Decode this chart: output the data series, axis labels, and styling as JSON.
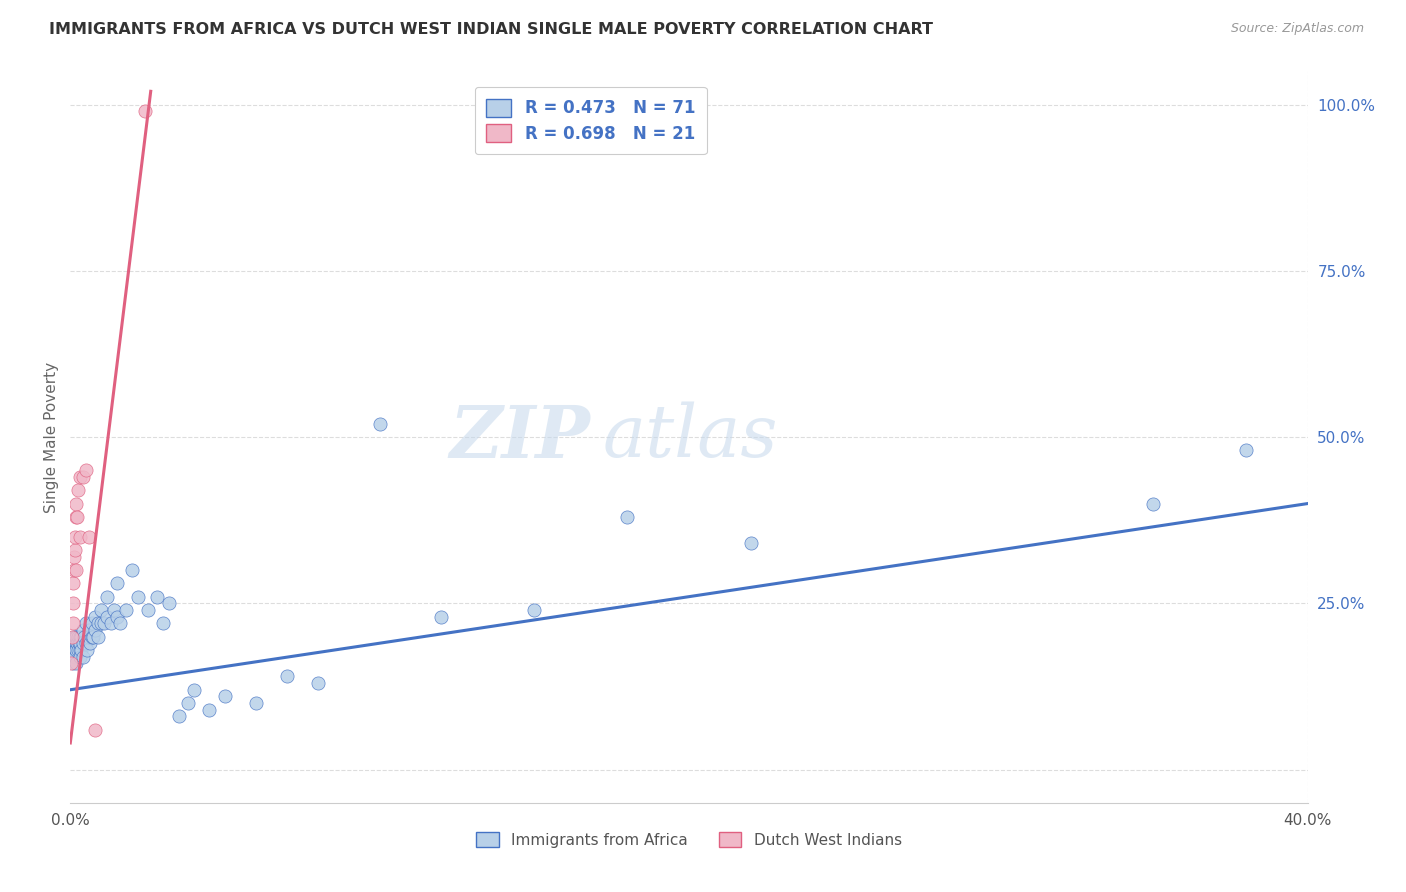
{
  "title": "IMMIGRANTS FROM AFRICA VS DUTCH WEST INDIAN SINGLE MALE POVERTY CORRELATION CHART",
  "source": "Source: ZipAtlas.com",
  "ylabel": "Single Male Poverty",
  "legend_label1": "Immigrants from Africa",
  "legend_label2": "Dutch West Indians",
  "r1": 0.473,
  "n1": 71,
  "r2": 0.698,
  "n2": 21,
  "color_africa": "#b8d0e8",
  "color_dwi": "#f0b8c8",
  "color_africa_line": "#4472c4",
  "color_dwi_line": "#e06080",
  "color_text_blue": "#4472c4",
  "watermark_zip": "ZIP",
  "watermark_atlas": "atlas",
  "xlim": [
    0.0,
    0.4
  ],
  "ylim": [
    -0.05,
    1.05
  ],
  "africa_x": [
    0.0005,
    0.0008,
    0.001,
    0.001,
    0.0012,
    0.0014,
    0.0015,
    0.0015,
    0.0018,
    0.002,
    0.002,
    0.002,
    0.0022,
    0.0025,
    0.0025,
    0.0028,
    0.003,
    0.003,
    0.003,
    0.0032,
    0.0035,
    0.0035,
    0.004,
    0.004,
    0.0042,
    0.0045,
    0.005,
    0.005,
    0.0055,
    0.006,
    0.006,
    0.0065,
    0.007,
    0.007,
    0.0075,
    0.008,
    0.008,
    0.009,
    0.009,
    0.01,
    0.01,
    0.011,
    0.012,
    0.012,
    0.013,
    0.014,
    0.015,
    0.015,
    0.016,
    0.018,
    0.02,
    0.022,
    0.025,
    0.028,
    0.03,
    0.032,
    0.035,
    0.038,
    0.04,
    0.045,
    0.05,
    0.06,
    0.07,
    0.08,
    0.1,
    0.12,
    0.15,
    0.18,
    0.22,
    0.35,
    0.38
  ],
  "africa_y": [
    0.18,
    0.17,
    0.19,
    0.16,
    0.2,
    0.18,
    0.2,
    0.17,
    0.19,
    0.16,
    0.18,
    0.2,
    0.19,
    0.18,
    0.2,
    0.19,
    0.18,
    0.17,
    0.2,
    0.19,
    0.2,
    0.18,
    0.17,
    0.19,
    0.21,
    0.2,
    0.19,
    0.22,
    0.18,
    0.2,
    0.21,
    0.19,
    0.2,
    0.22,
    0.2,
    0.21,
    0.23,
    0.22,
    0.2,
    0.22,
    0.24,
    0.22,
    0.26,
    0.23,
    0.22,
    0.24,
    0.23,
    0.28,
    0.22,
    0.24,
    0.3,
    0.26,
    0.24,
    0.26,
    0.22,
    0.25,
    0.08,
    0.1,
    0.12,
    0.09,
    0.11,
    0.1,
    0.14,
    0.13,
    0.52,
    0.23,
    0.24,
    0.38,
    0.34,
    0.4,
    0.48
  ],
  "dwi_x": [
    0.0003,
    0.0005,
    0.0008,
    0.001,
    0.001,
    0.0012,
    0.0013,
    0.0015,
    0.0015,
    0.0018,
    0.002,
    0.002,
    0.0022,
    0.0025,
    0.003,
    0.003,
    0.004,
    0.005,
    0.006,
    0.008,
    0.024
  ],
  "dwi_y": [
    0.16,
    0.2,
    0.22,
    0.25,
    0.28,
    0.3,
    0.32,
    0.33,
    0.35,
    0.38,
    0.3,
    0.4,
    0.38,
    0.42,
    0.35,
    0.44,
    0.44,
    0.45,
    0.35,
    0.06,
    0.99
  ],
  "line_africa_x0": 0.0,
  "line_africa_x1": 0.4,
  "line_africa_y0": 0.12,
  "line_africa_y1": 0.4,
  "line_dwi_x0": 0.0,
  "line_dwi_x1": 0.026,
  "line_dwi_y0": 0.04,
  "line_dwi_y1": 1.02
}
